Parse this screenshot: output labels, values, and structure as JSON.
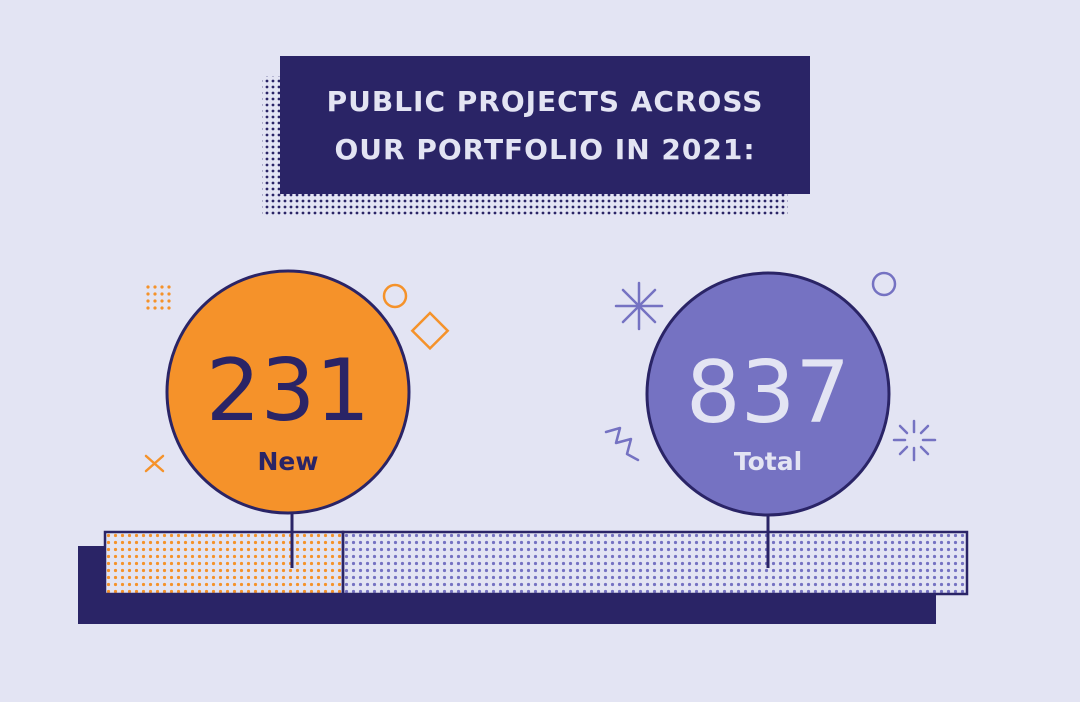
{
  "title": {
    "line1": "PUBLIC PROJECTS ACROSS",
    "line2": "OUR PORTFOLIO IN 2021:"
  },
  "chart_data": {
    "type": "bar",
    "orientation": "horizontal-stacked",
    "segments": [
      {
        "label": "New",
        "value": 231
      },
      {
        "label": "Total",
        "value": 837
      }
    ]
  },
  "colors": {
    "background": "#e3e4f3",
    "navy": "#2a2466",
    "orange": "#f5922a",
    "purple": "#7572c2",
    "light_text": "#e3e4f3"
  },
  "decorations": [
    "dot-grid-icon",
    "circle-icon",
    "diamond-icon",
    "x-icon",
    "asterisk-icon",
    "squiggle-icon",
    "sparkle-icon"
  ]
}
